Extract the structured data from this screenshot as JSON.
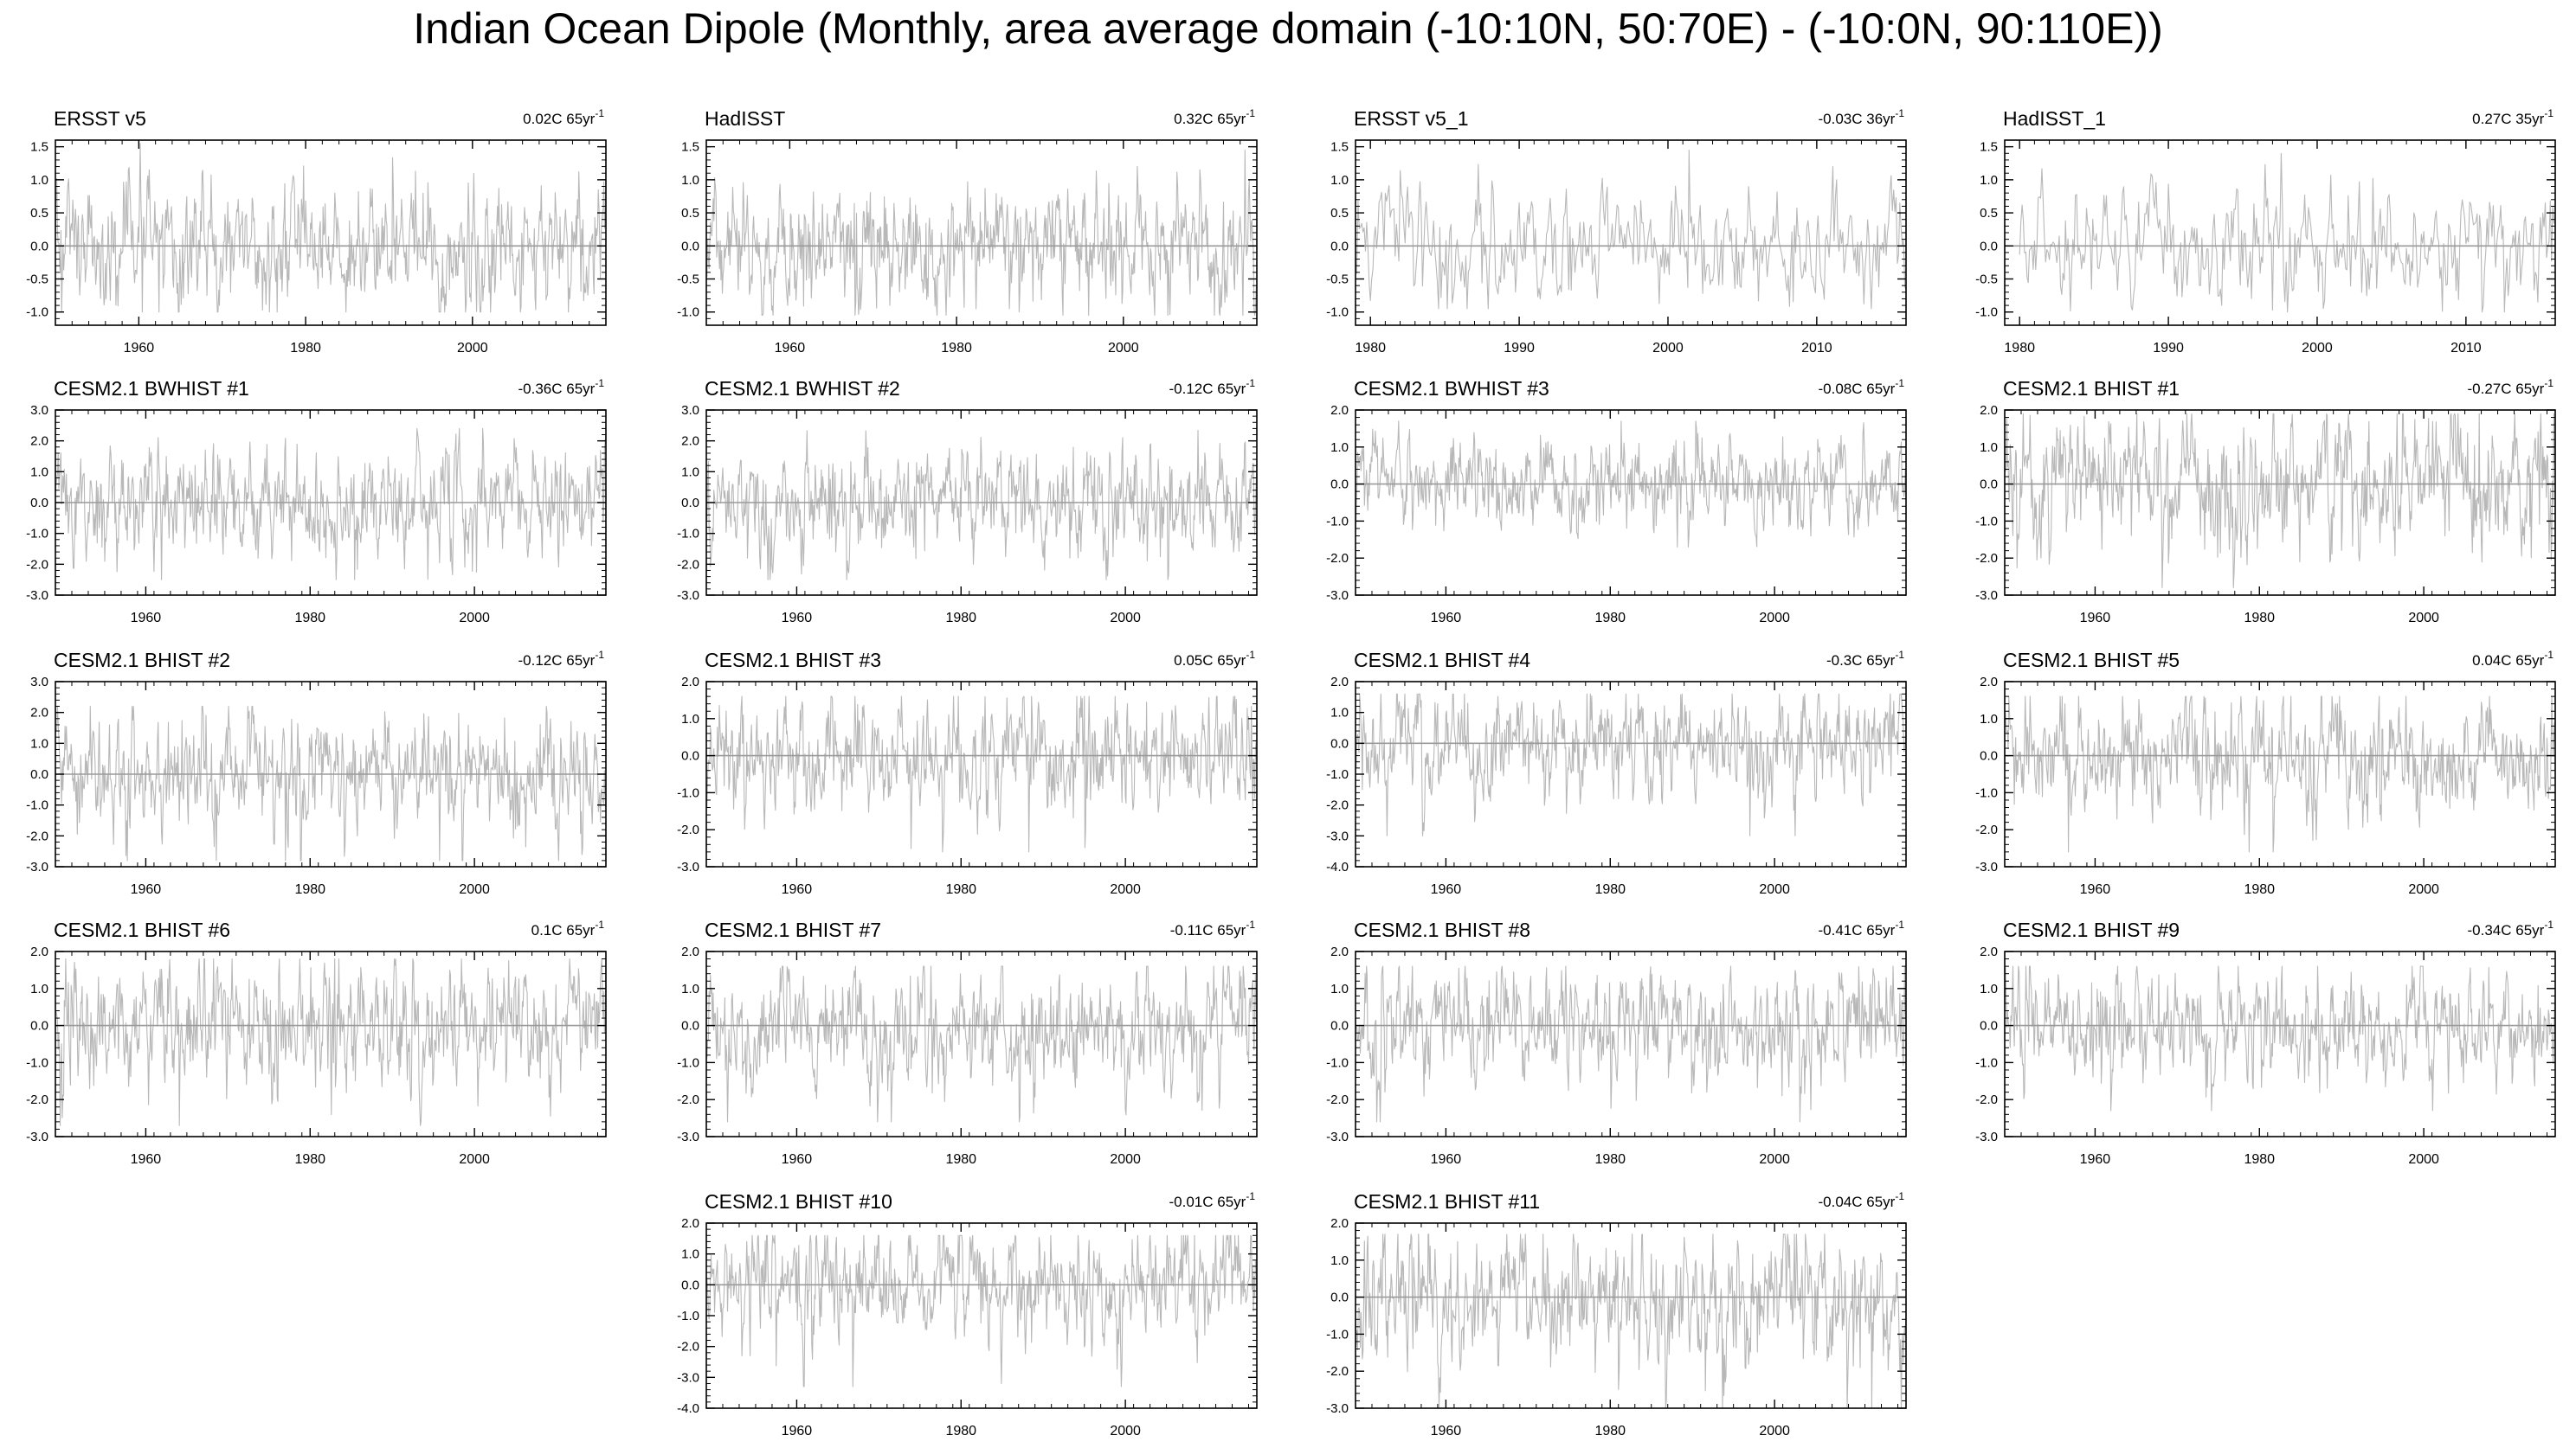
{
  "title": "Indian Ocean Dipole (Monthly, area average domain (-10:10N, 50:70E) - (-10:0N, 90:110E))",
  "colors": {
    "trace": "#b8b8b8",
    "zero_line": "#9a9a9a",
    "axis": "#000000"
  },
  "chart_data": [
    {
      "type": "line",
      "title": "ERSST v5",
      "trend": "0.02C 65yr",
      "trend_sup": "-1",
      "xlim": [
        1950,
        2016
      ],
      "xticks": [
        1960,
        1980,
        2000
      ],
      "ylim": [
        -1.2,
        1.6
      ],
      "yticks": [
        "1.5",
        "1.0",
        "0.5",
        "0.0",
        "-0.5",
        "-1.0"
      ],
      "yvalues": [
        1.5,
        1.0,
        0.5,
        0.0,
        -0.5,
        -1.0
      ],
      "zero_line": 0,
      "series": [
        {
          "x_start": 1950,
          "x_end": 2016,
          "frequency": "monthly",
          "min": -1.0,
          "max": 1.55
        }
      ]
    },
    {
      "type": "line",
      "title": "HadISST",
      "trend": "0.32C 65yr",
      "trend_sup": "-1",
      "xlim": [
        1950,
        2016
      ],
      "xticks": [
        1960,
        1980,
        2000
      ],
      "ylim": [
        -1.2,
        1.6
      ],
      "yticks": [
        "1.5",
        "1.0",
        "0.5",
        "0.0",
        "-0.5",
        "-1.0"
      ],
      "yvalues": [
        1.5,
        1.0,
        0.5,
        0.0,
        -0.5,
        -1.0
      ],
      "zero_line": 0,
      "series": [
        {
          "x_start": 1950,
          "x_end": 2016,
          "frequency": "monthly",
          "min": -1.05,
          "max": 1.45
        }
      ]
    },
    {
      "type": "line",
      "title": "ERSST v5_1",
      "trend": "-0.03C 36yr",
      "trend_sup": "-1",
      "xlim": [
        1979,
        2016
      ],
      "xticks": [
        1980,
        1990,
        2000,
        2010
      ],
      "ylim": [
        -1.2,
        1.6
      ],
      "yticks": [
        "1.5",
        "1.0",
        "0.5",
        "0.0",
        "-0.5",
        "-1.0"
      ],
      "yvalues": [
        1.5,
        1.0,
        0.5,
        0.0,
        -0.5,
        -1.0
      ],
      "zero_line": 0,
      "series": [
        {
          "x_start": 1979,
          "x_end": 2016,
          "frequency": "monthly",
          "min": -0.95,
          "max": 1.45
        }
      ]
    },
    {
      "type": "line",
      "title": "HadISST_1",
      "trend": "0.27C 35yr",
      "trend_sup": "-1",
      "xlim": [
        1979,
        2016
      ],
      "xticks": [
        1980,
        1990,
        2000,
        2010
      ],
      "ylim": [
        -1.2,
        1.6
      ],
      "yticks": [
        "1.5",
        "1.0",
        "0.5",
        "0.0",
        "-0.5",
        "-1.0"
      ],
      "yvalues": [
        1.5,
        1.0,
        0.5,
        0.0,
        -0.5,
        -1.0
      ],
      "zero_line": 0,
      "series": [
        {
          "x_start": 1980,
          "x_end": 2016,
          "frequency": "monthly",
          "min": -1.0,
          "max": 1.4
        }
      ]
    },
    {
      "type": "line",
      "title": "CESM2.1 BWHIST #1",
      "trend": "-0.36C 65yr",
      "trend_sup": "-1",
      "xlim": [
        1949,
        2016
      ],
      "xticks": [
        1960,
        1980,
        2000
      ],
      "ylim": [
        -3.0,
        3.0
      ],
      "yticks": [
        "3.0",
        "2.0",
        "1.0",
        "0.0",
        "-1.0",
        "-2.0",
        "-3.0"
      ],
      "yvalues": [
        3,
        2,
        1,
        0,
        -1,
        -2,
        -3
      ],
      "zero_line": 0,
      "series": [
        {
          "x_start": 1949,
          "x_end": 2016,
          "frequency": "monthly",
          "min": -2.5,
          "max": 2.4
        }
      ]
    },
    {
      "type": "line",
      "title": "CESM2.1 BWHIST #2",
      "trend": "-0.12C 65yr",
      "trend_sup": "-1",
      "xlim": [
        1949,
        2016
      ],
      "xticks": [
        1960,
        1980,
        2000
      ],
      "ylim": [
        -3.0,
        3.0
      ],
      "yticks": [
        "3.0",
        "2.0",
        "1.0",
        "0.0",
        "-1.0",
        "-2.0",
        "-3.0"
      ],
      "yvalues": [
        3,
        2,
        1,
        0,
        -1,
        -2,
        -3
      ],
      "zero_line": 0,
      "series": [
        {
          "x_start": 1949,
          "x_end": 2016,
          "frequency": "monthly",
          "min": -2.5,
          "max": 2.4
        }
      ]
    },
    {
      "type": "line",
      "title": "CESM2.1 BWHIST #3",
      "trend": "-0.08C 65yr",
      "trend_sup": "-1",
      "xlim": [
        1949,
        2016
      ],
      "xticks": [
        1960,
        1980,
        2000
      ],
      "ylim": [
        -3.0,
        2.0
      ],
      "yticks": [
        "2.0",
        "1.0",
        "0.0",
        "-1.0",
        "-2.0",
        "-3.0"
      ],
      "yvalues": [
        2,
        1,
        0,
        -1,
        -2,
        -3
      ],
      "zero_line": 0,
      "series": [
        {
          "x_start": 1949,
          "x_end": 2016,
          "frequency": "monthly",
          "min": -1.7,
          "max": 1.7
        }
      ]
    },
    {
      "type": "line",
      "title": "CESM2.1 BHIST #1",
      "trend": "-0.27C 65yr",
      "trend_sup": "-1",
      "xlim": [
        1949,
        2016
      ],
      "xticks": [
        1960,
        1980,
        2000
      ],
      "ylim": [
        -3.0,
        2.0
      ],
      "yticks": [
        "2.0",
        "1.0",
        "0.0",
        "-1.0",
        "-2.0",
        "-3.0"
      ],
      "yvalues": [
        2,
        1,
        0,
        -1,
        -2,
        -3
      ],
      "zero_line": 0,
      "series": [
        {
          "x_start": 1949,
          "x_end": 2016,
          "frequency": "monthly",
          "min": -2.8,
          "max": 1.9
        }
      ]
    },
    {
      "type": "line",
      "title": "CESM2.1 BHIST #2",
      "trend": "-0.12C 65yr",
      "trend_sup": "-1",
      "xlim": [
        1949,
        2016
      ],
      "xticks": [
        1960,
        1980,
        2000
      ],
      "ylim": [
        -3.0,
        3.0
      ],
      "yticks": [
        "3.0",
        "2.0",
        "1.0",
        "0.0",
        "-1.0",
        "-2.0",
        "-3.0"
      ],
      "yvalues": [
        3,
        2,
        1,
        0,
        -1,
        -2,
        -3
      ],
      "zero_line": 0,
      "series": [
        {
          "x_start": 1949,
          "x_end": 2016,
          "frequency": "monthly",
          "min": -2.8,
          "max": 2.2
        }
      ]
    },
    {
      "type": "line",
      "title": "CESM2.1 BHIST #3",
      "trend": "0.05C 65yr",
      "trend_sup": "-1",
      "xlim": [
        1949,
        2016
      ],
      "xticks": [
        1960,
        1980,
        2000
      ],
      "ylim": [
        -3.0,
        2.0
      ],
      "yticks": [
        "2.0",
        "1.0",
        "0.0",
        "-1.0",
        "-2.0",
        "-3.0"
      ],
      "yvalues": [
        2,
        1,
        0,
        -1,
        -2,
        -3
      ],
      "zero_line": 0,
      "series": [
        {
          "x_start": 1949,
          "x_end": 2016,
          "frequency": "monthly",
          "min": -2.6,
          "max": 1.6
        }
      ]
    },
    {
      "type": "line",
      "title": "CESM2.1 BHIST #4",
      "trend": "-0.3C 65yr",
      "trend_sup": "-1",
      "xlim": [
        1949,
        2016
      ],
      "xticks": [
        1960,
        1980,
        2000
      ],
      "ylim": [
        -4.0,
        2.0
      ],
      "yticks": [
        "2.0",
        "1.0",
        "0.0",
        "-1.0",
        "-2.0",
        "-3.0",
        "-4.0"
      ],
      "yvalues": [
        2,
        1,
        0,
        -1,
        -2,
        -3,
        -4
      ],
      "zero_line": 0,
      "series": [
        {
          "x_start": 1949,
          "x_end": 2016,
          "frequency": "monthly",
          "min": -3.0,
          "max": 1.6
        }
      ]
    },
    {
      "type": "line",
      "title": "CESM2.1 BHIST #5",
      "trend": "0.04C 65yr",
      "trend_sup": "-1",
      "xlim": [
        1949,
        2016
      ],
      "xticks": [
        1960,
        1980,
        2000
      ],
      "ylim": [
        -3.0,
        2.0
      ],
      "yticks": [
        "2.0",
        "1.0",
        "0.0",
        "-1.0",
        "-2.0",
        "-3.0"
      ],
      "yvalues": [
        2,
        1,
        0,
        -1,
        -2,
        -3
      ],
      "zero_line": 0,
      "series": [
        {
          "x_start": 1949,
          "x_end": 2016,
          "frequency": "monthly",
          "min": -2.6,
          "max": 1.6
        }
      ]
    },
    {
      "type": "line",
      "title": "CESM2.1 BHIST #6",
      "trend": "0.1C 65yr",
      "trend_sup": "-1",
      "xlim": [
        1949,
        2016
      ],
      "xticks": [
        1960,
        1980,
        2000
      ],
      "ylim": [
        -3.0,
        2.0
      ],
      "yticks": [
        "2.0",
        "1.0",
        "0.0",
        "-1.0",
        "-2.0",
        "-3.0"
      ],
      "yvalues": [
        2,
        1,
        0,
        -1,
        -2,
        -3
      ],
      "zero_line": 0,
      "series": [
        {
          "x_start": 1949,
          "x_end": 2016,
          "frequency": "monthly",
          "min": -2.7,
          "max": 1.8
        }
      ]
    },
    {
      "type": "line",
      "title": "CESM2.1 BHIST #7",
      "trend": "-0.11C 65yr",
      "trend_sup": "-1",
      "xlim": [
        1949,
        2016
      ],
      "xticks": [
        1960,
        1980,
        2000
      ],
      "ylim": [
        -3.0,
        2.0
      ],
      "yticks": [
        "2.0",
        "1.0",
        "0.0",
        "-1.0",
        "-2.0",
        "-3.0"
      ],
      "yvalues": [
        2,
        1,
        0,
        -1,
        -2,
        -3
      ],
      "zero_line": 0,
      "series": [
        {
          "x_start": 1949,
          "x_end": 2016,
          "frequency": "monthly",
          "min": -2.6,
          "max": 1.6
        }
      ]
    },
    {
      "type": "line",
      "title": "CESM2.1 BHIST #8",
      "trend": "-0.41C 65yr",
      "trend_sup": "-1",
      "xlim": [
        1949,
        2016
      ],
      "xticks": [
        1960,
        1980,
        2000
      ],
      "ylim": [
        -3.0,
        2.0
      ],
      "yticks": [
        "2.0",
        "1.0",
        "0.0",
        "-1.0",
        "-2.0",
        "-3.0"
      ],
      "yvalues": [
        2,
        1,
        0,
        -1,
        -2,
        -3
      ],
      "zero_line": 0,
      "series": [
        {
          "x_start": 1949,
          "x_end": 2016,
          "frequency": "monthly",
          "min": -2.6,
          "max": 1.6
        }
      ]
    },
    {
      "type": "line",
      "title": "CESM2.1 BHIST #9",
      "trend": "-0.34C 65yr",
      "trend_sup": "-1",
      "xlim": [
        1949,
        2016
      ],
      "xticks": [
        1960,
        1980,
        2000
      ],
      "ylim": [
        -3.0,
        2.0
      ],
      "yticks": [
        "2.0",
        "1.0",
        "0.0",
        "-1.0",
        "-2.0",
        "-3.0"
      ],
      "yvalues": [
        2,
        1,
        0,
        -1,
        -2,
        -3
      ],
      "zero_line": 0,
      "series": [
        {
          "x_start": 1949,
          "x_end": 2016,
          "frequency": "monthly",
          "min": -2.3,
          "max": 1.6
        }
      ]
    },
    {
      "type": "line",
      "title": "CESM2.1 BHIST #10",
      "trend": "-0.01C 65yr",
      "trend_sup": "-1",
      "xlim": [
        1949,
        2016
      ],
      "xticks": [
        1960,
        1980,
        2000
      ],
      "ylim": [
        -4.0,
        2.0
      ],
      "yticks": [
        "2.0",
        "1.0",
        "0.0",
        "-1.0",
        "-2.0",
        "-3.0",
        "-4.0"
      ],
      "yvalues": [
        2,
        1,
        0,
        -1,
        -2,
        -3,
        -4
      ],
      "zero_line": 0,
      "series": [
        {
          "x_start": 1949,
          "x_end": 2016,
          "frequency": "monthly",
          "min": -3.3,
          "max": 1.6
        }
      ]
    },
    {
      "type": "line",
      "title": "CESM2.1 BHIST #11",
      "trend": "-0.04C 65yr",
      "trend_sup": "-1",
      "xlim": [
        1949,
        2016
      ],
      "xticks": [
        1960,
        1980,
        2000
      ],
      "ylim": [
        -3.0,
        2.0
      ],
      "yticks": [
        "2.0",
        "1.0",
        "0.0",
        "-1.0",
        "-2.0",
        "-3.0"
      ],
      "yvalues": [
        2,
        1,
        0,
        -1,
        -2,
        -3
      ],
      "zero_line": 0,
      "series": [
        {
          "x_start": 1949,
          "x_end": 2016,
          "frequency": "monthly",
          "min": -3.0,
          "max": 1.7
        }
      ]
    }
  ]
}
